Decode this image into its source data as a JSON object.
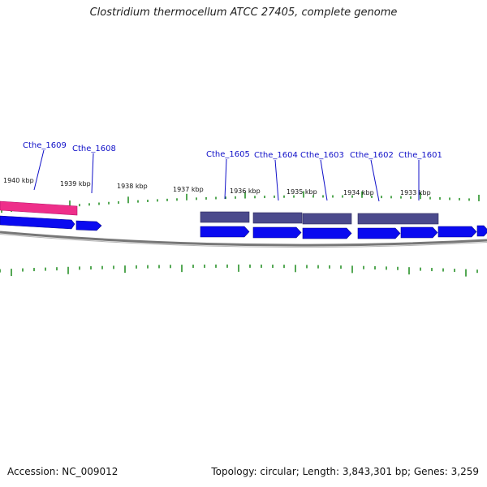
{
  "title": "Clostridium thermocellum ATCC 27405, complete genome",
  "footer": {
    "accession": "Accession: NC_009012",
    "summary": "Topology: circular; Length: 3,843,301 bp; Genes: 3,259"
  },
  "colors": {
    "tick": "#1a8a1a",
    "gene_forward": "#0a0af0",
    "gene_highlight": "#ee2f8a",
    "gene_reverse": "#4b4a8c",
    "backbone": "#777777",
    "label": "#1010c8"
  },
  "scale": {
    "tick_labels": [
      "1940 kbp",
      "1939 kbp",
      "1938 kbp",
      "1937 kbp",
      "1936 kbp",
      "1935 kbp",
      "1934 kbp",
      "1933 kbp"
    ]
  },
  "genes": [
    {
      "label": "Cthe_1609"
    },
    {
      "label": "Cthe_1608"
    },
    {
      "label": "Cthe_1605"
    },
    {
      "label": "Cthe_1604"
    },
    {
      "label": "Cthe_1603"
    },
    {
      "label": "Cthe_1602"
    },
    {
      "label": "Cthe_1601"
    }
  ]
}
